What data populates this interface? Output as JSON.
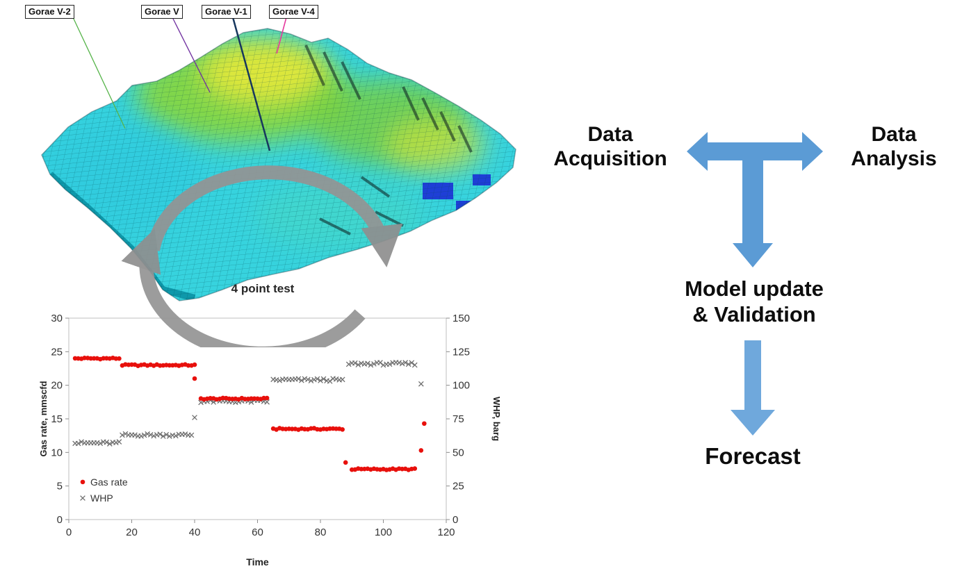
{
  "wells": {
    "labels": [
      "Gorae V-2",
      "Gorae V",
      "Gorae V-1",
      "Gorae V-4"
    ],
    "leader_colors": [
      "#56b44a",
      "#7030a0",
      "#17375e",
      "#e5399e"
    ]
  },
  "chart_data": {
    "type": "scatter",
    "title": "4 point test",
    "xlabel": "Time",
    "ylabel_left": "Gas rate, mmscfd",
    "ylabel_right": "WHP, barg",
    "xlim": [
      0,
      120
    ],
    "xticks": [
      0,
      20,
      40,
      60,
      80,
      100,
      120
    ],
    "ylim_left": [
      0,
      30
    ],
    "yticks_left": [
      0,
      5,
      10,
      15,
      20,
      25,
      30
    ],
    "ylim_right": [
      0,
      150
    ],
    "yticks_right": [
      0,
      25,
      50,
      75,
      100,
      125,
      150
    ],
    "grid": false,
    "legend_position": "inside bottom-left",
    "series": [
      {
        "name": "Gas rate",
        "axis": "left",
        "marker": "dot",
        "color": "#e8100c",
        "jitter": 0.22,
        "segments": [
          {
            "t0": 2,
            "t1": 16,
            "v": 24
          },
          {
            "t0": 17,
            "t1": 40,
            "v": 23
          },
          {
            "t0": 42,
            "t1": 63,
            "v": 18
          },
          {
            "t0": 65,
            "t1": 87,
            "v": 13.5
          },
          {
            "t0": 90,
            "t1": 110,
            "v": 7.5
          }
        ],
        "points": [
          [
            40,
            21
          ],
          [
            88,
            8.5
          ],
          [
            112,
            10.3
          ],
          [
            113,
            14.3
          ]
        ]
      },
      {
        "name": "WHP",
        "axis": "right",
        "marker": "x",
        "color": "#6e6e6e",
        "jitter": 2.0,
        "segments": [
          {
            "t0": 2,
            "t1": 16,
            "v": 57
          },
          {
            "t0": 17,
            "t1": 39,
            "v": 63
          },
          {
            "t0": 42,
            "t1": 63,
            "v": 88
          },
          {
            "t0": 65,
            "t1": 87,
            "v": 104
          },
          {
            "t0": 89,
            "t1": 110,
            "v": 116
          }
        ],
        "points": [
          [
            40,
            76
          ],
          [
            112,
            101
          ]
        ]
      }
    ]
  },
  "flow": {
    "acquisition": {
      "line1": "Data",
      "line2": "Acquisition"
    },
    "analysis": {
      "line1": "Data",
      "line2": "Analysis"
    },
    "model_update": {
      "line1": "Model update",
      "line2": "& Validation"
    },
    "forecast": {
      "line1": "Forecast"
    },
    "arrow_color": "#5b9bd5",
    "arrow2_color": "#6fa8dc"
  },
  "colors": {
    "cycle_arrow": "#949494",
    "reservoir_base": "#37d3de"
  }
}
